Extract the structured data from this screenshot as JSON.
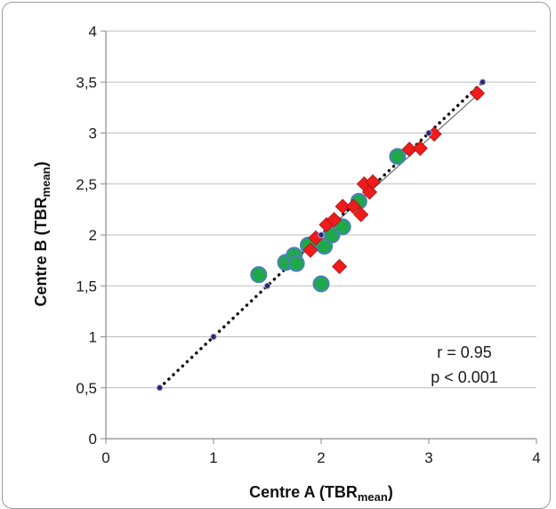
{
  "chart_data": {
    "type": "scatter",
    "xlabel": "Centre A (TBR",
    "xlabel_sub": "mean",
    "xlabel_end": ")",
    "ylabel": "Centre B (TBR",
    "ylabel_sub": "mean",
    "ylabel_end": ")",
    "xlim": [
      0,
      4
    ],
    "ylim": [
      0,
      4
    ],
    "x_ticks": [
      0,
      1,
      2,
      3,
      4
    ],
    "x_tick_labels": [
      "0",
      "1",
      "2",
      "3",
      "4"
    ],
    "y_ticks": [
      0,
      0.5,
      1,
      1.5,
      2,
      2.5,
      3,
      3.5,
      4
    ],
    "y_tick_labels": [
      "0",
      "0,5",
      "1",
      "1,5",
      "2",
      "2,5",
      "3",
      "3,5",
      "4"
    ],
    "grid": true,
    "annotations": [
      "r = 0.95",
      "p < 0.001"
    ],
    "series": [
      {
        "marker": "circle",
        "color": "#1fa84a",
        "edge_color": "#4a7fc0",
        "points": [
          [
            1.42,
            1.61
          ],
          [
            1.67,
            1.73
          ],
          [
            1.75,
            1.8
          ],
          [
            1.77,
            1.72
          ],
          [
            1.88,
            1.9
          ],
          [
            2.0,
            1.52
          ],
          [
            2.03,
            1.89
          ],
          [
            2.1,
            2.0
          ],
          [
            2.2,
            2.08
          ],
          [
            2.35,
            2.33
          ],
          [
            2.71,
            2.77
          ]
        ]
      },
      {
        "marker": "diamond",
        "color": "#ee1c1c",
        "edge_color": "#b01010",
        "points": [
          [
            1.9,
            1.85
          ],
          [
            1.95,
            1.97
          ],
          [
            2.05,
            2.1
          ],
          [
            2.12,
            2.15
          ],
          [
            2.17,
            1.69
          ],
          [
            2.2,
            2.28
          ],
          [
            2.3,
            2.28
          ],
          [
            2.37,
            2.2
          ],
          [
            2.4,
            2.5
          ],
          [
            2.45,
            2.42
          ],
          [
            2.48,
            2.52
          ],
          [
            2.82,
            2.84
          ],
          [
            2.92,
            2.85
          ],
          [
            3.05,
            2.99
          ],
          [
            3.45,
            3.39
          ]
        ]
      },
      {
        "marker": "small-dot",
        "color": "#2a2a6a",
        "points": [
          [
            0.5,
            0.5
          ],
          [
            1,
            1
          ],
          [
            1.5,
            1.5
          ],
          [
            2,
            2
          ],
          [
            3,
            3
          ],
          [
            3.5,
            3.5
          ]
        ]
      }
    ],
    "identity_line": {
      "from": [
        0.5,
        0.5
      ],
      "to": [
        3.5,
        3.5
      ],
      "style": "dotted",
      "color": "#111111"
    },
    "fit_line": {
      "from": [
        1.85,
        1.85
      ],
      "to": [
        3.5,
        3.42
      ],
      "style": "solid",
      "color": "#555555"
    }
  }
}
